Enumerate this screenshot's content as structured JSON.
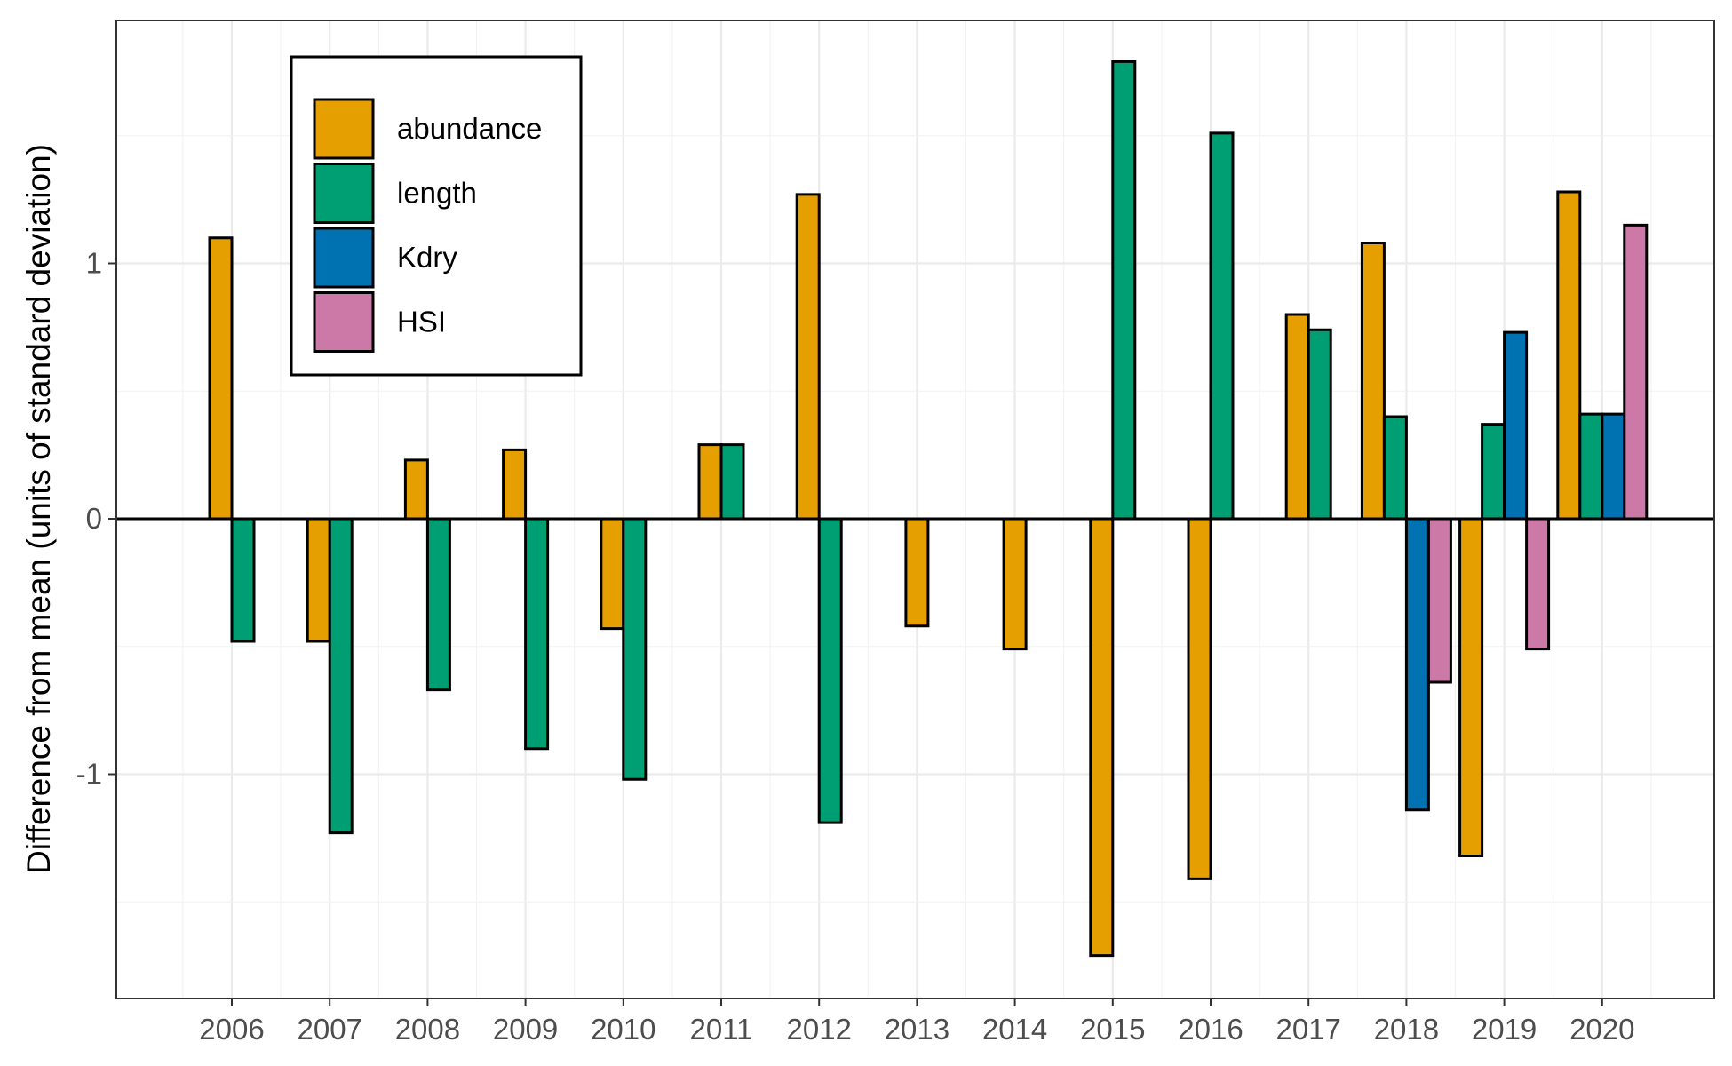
{
  "chart_data": {
    "type": "bar",
    "title": "",
    "xlabel": "",
    "ylabel": "Difference from mean (units of standard deviation)",
    "categories": [
      "2006",
      "2007",
      "2008",
      "2009",
      "2010",
      "2011",
      "2012",
      "2013",
      "2014",
      "2015",
      "2016",
      "2017",
      "2018",
      "2019",
      "2020"
    ],
    "yticks": [
      -1,
      0,
      1
    ],
    "ylim": [
      -1.87,
      1.92
    ],
    "grid": true,
    "legend_position": "top-left",
    "series": [
      {
        "name": "abundance",
        "color": "#E69F00",
        "values": [
          1.1,
          -0.48,
          0.23,
          0.27,
          -0.43,
          0.29,
          1.27,
          -0.42,
          -0.51,
          -1.71,
          -1.41,
          0.8,
          1.08,
          -1.32,
          1.28
        ]
      },
      {
        "name": "length",
        "color": "#009E73",
        "values": [
          -0.48,
          -1.23,
          -0.67,
          -0.9,
          -1.02,
          0.29,
          -1.19,
          null,
          null,
          1.79,
          1.51,
          0.74,
          0.4,
          0.37,
          0.41
        ]
      },
      {
        "name": "Kdry",
        "color": "#0072B2",
        "values": [
          null,
          null,
          null,
          null,
          null,
          null,
          null,
          null,
          null,
          null,
          null,
          null,
          -1.14,
          0.73,
          0.41
        ]
      },
      {
        "name": "HSI",
        "color": "#CC79A7",
        "values": [
          null,
          null,
          null,
          null,
          null,
          null,
          null,
          null,
          null,
          null,
          null,
          null,
          -0.64,
          -0.51,
          1.15
        ]
      }
    ]
  }
}
